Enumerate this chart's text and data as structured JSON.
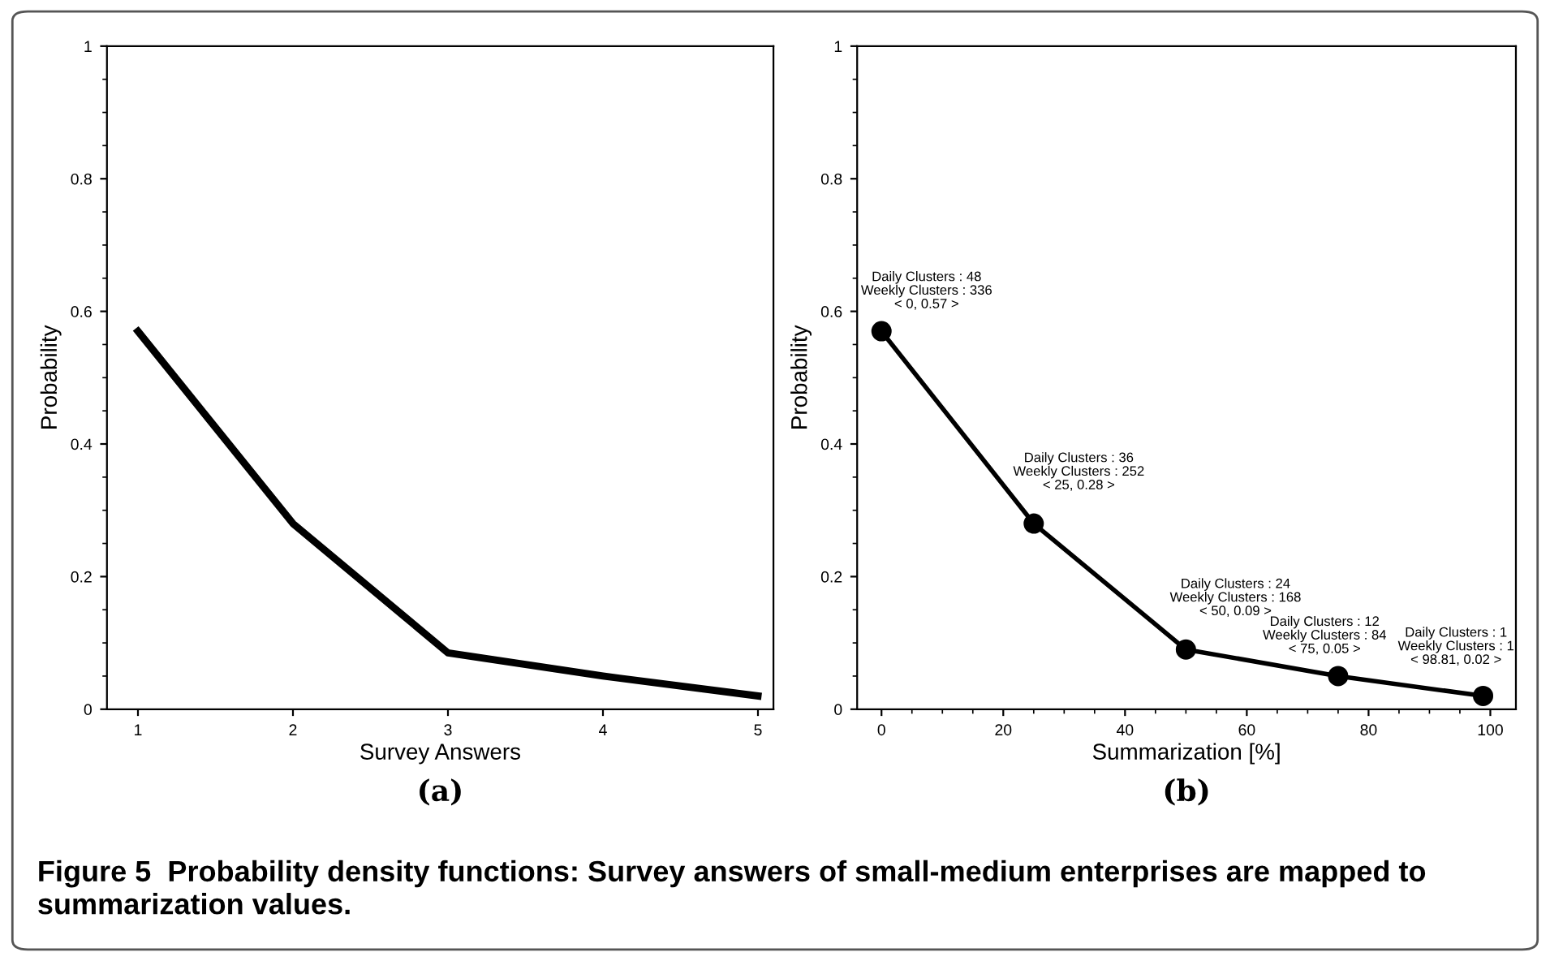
{
  "chart_data": [
    {
      "type": "line",
      "xlabel": "Survey Answers",
      "ylabel": "Probability",
      "x": [
        1,
        2,
        3,
        4,
        5
      ],
      "series": [
        {
          "color": "#000000",
          "values": [
            0.57,
            0.28,
            0.085,
            0.05,
            0.02
          ]
        }
      ],
      "xlim": [
        0.8,
        5.1
      ],
      "xticks": [
        1,
        2,
        3,
        4,
        5
      ],
      "ylim": [
        0,
        1
      ],
      "yticks": [
        0,
        0.2,
        0.4,
        0.6,
        0.8,
        1
      ],
      "grid": false,
      "marker": "none",
      "line_style": "solid",
      "annotations": [
        "(a)"
      ]
    },
    {
      "type": "line",
      "xlabel": "Summarization [%]",
      "ylabel": "Probability",
      "x": [
        0,
        25,
        50,
        75,
        98.81
      ],
      "series": [
        {
          "color": "#000000",
          "values": [
            0.57,
            0.28,
            0.09,
            0.05,
            0.02
          ]
        }
      ],
      "xlim": [
        -4,
        104.2
      ],
      "xticks": [
        0,
        20,
        40,
        60,
        80,
        100
      ],
      "ylim": [
        0,
        1
      ],
      "yticks": [
        0,
        0.2,
        0.4,
        0.6,
        0.8,
        1
      ],
      "grid": false,
      "marker": "circle",
      "line_style": "solid",
      "annotations": [
        {
          "text": "Daily Clusters : 48\nWeekly Clusters : 336\n< 0, 0.57 >",
          "x": 0,
          "y": 0.57
        },
        {
          "text": "Daily Clusters : 36\nWeekly Clusters : 252\n< 25, 0.28 >",
          "x": 25,
          "y": 0.28
        },
        {
          "text": "Daily Clusters : 24\nWeekly Clusters : 168\n< 50, 0.09 >",
          "x": 50,
          "y": 0.09
        },
        {
          "text": "Daily Clusters : 12\nWeekly Clusters : 84\n< 75, 0.05 >",
          "x": 75,
          "y": 0.05
        },
        {
          "text": "Daily Clusters : 1\nWeekly Clusters : 1\n< 98.81, 0.02 >",
          "x": 98.81,
          "y": 0.02
        },
        "(b)",
        "Figure 5  Probability density functions: Survey answers of small-medium enterprises are mapped to summarization values."
      ]
    }
  ]
}
